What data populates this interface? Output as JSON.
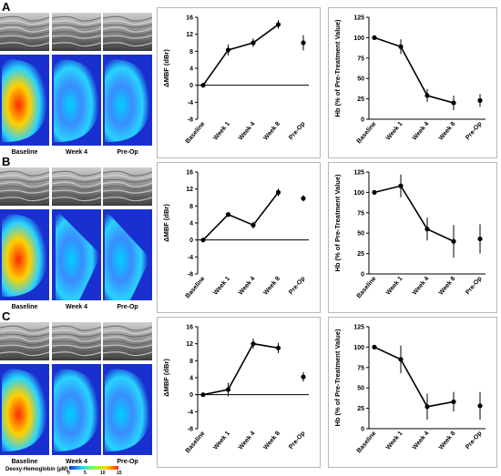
{
  "panels": [
    {
      "letter": "A",
      "image_captions": [
        "Baseline",
        "Week 4",
        "Pre-Op"
      ],
      "mbf": {
        "type": "line",
        "ylabel": "ΔMBF (dBr)",
        "ylim": [
          -8,
          16
        ],
        "yticks": [
          "-8",
          "-4",
          "0",
          "4",
          "8",
          "12",
          "16"
        ],
        "x_labels": [
          "Baseline",
          "Week 1",
          "Week 4",
          "Week 8",
          "Pre-Op"
        ],
        "points": [
          {
            "x": "Baseline",
            "y": 0,
            "err": 0
          },
          {
            "x": "Week 1",
            "y": 8.3,
            "err": 1.3
          },
          {
            "x": "Week 4",
            "y": 10,
            "err": 1.0
          },
          {
            "x": "Week 8",
            "y": 14.3,
            "err": 1.0
          },
          {
            "x": "Pre-Op",
            "y": 10,
            "err": 1.8
          }
        ]
      },
      "hb": {
        "type": "line",
        "ylabel": "Hb (% of Pre-Treatment Value)",
        "ylim": [
          0,
          125
        ],
        "yticks": [
          "0",
          "25",
          "50",
          "75",
          "100",
          "125"
        ],
        "x_labels": [
          "Baseline",
          "Week 1",
          "Week 4",
          "Week 8",
          "Pre-Op"
        ],
        "points": [
          {
            "x": "Baseline",
            "y": 100,
            "err": 0
          },
          {
            "x": "Week 1",
            "y": 89,
            "err": 9
          },
          {
            "x": "Week 4",
            "y": 29,
            "err": 8
          },
          {
            "x": "Week 8",
            "y": 20,
            "err": 9
          },
          {
            "x": "Pre-Op",
            "y": 23,
            "err": 8
          }
        ]
      }
    },
    {
      "letter": "B",
      "image_captions": [
        "Baseline",
        "Week 4",
        "Pre-Op"
      ],
      "mbf": {
        "type": "line",
        "ylabel": "ΔMBF (dBr)",
        "ylim": [
          -8,
          16
        ],
        "yticks": [
          "-8",
          "-4",
          "0",
          "4",
          "8",
          "12",
          "16"
        ],
        "x_labels": [
          "Baseline",
          "Week 1",
          "Week 4",
          "Week 8",
          "Pre-Op"
        ],
        "points": [
          {
            "x": "Baseline",
            "y": 0,
            "err": 0
          },
          {
            "x": "Week 1",
            "y": 6,
            "err": 0.6
          },
          {
            "x": "Week 4",
            "y": 3.5,
            "err": 0.8
          },
          {
            "x": "Week 8",
            "y": 11.2,
            "err": 0.9
          },
          {
            "x": "Pre-Op",
            "y": 9.8,
            "err": 0.7
          }
        ]
      },
      "hb": {
        "type": "line",
        "ylabel": "Hb (% of Pre-Treatment Value)",
        "ylim": [
          0,
          125
        ],
        "yticks": [
          "0",
          "25",
          "50",
          "75",
          "100",
          "125"
        ],
        "x_labels": [
          "Baseline",
          "Week 1",
          "Week 4",
          "Week 8",
          "Pre-Op"
        ],
        "points": [
          {
            "x": "Baseline",
            "y": 100,
            "err": 0
          },
          {
            "x": "Week 1",
            "y": 108,
            "err": 14
          },
          {
            "x": "Week 4",
            "y": 55,
            "err": 14
          },
          {
            "x": "Week 8",
            "y": 40,
            "err": 20
          },
          {
            "x": "Pre-Op",
            "y": 43,
            "err": 18
          }
        ]
      }
    },
    {
      "letter": "C",
      "image_captions": [
        "Baseline",
        "Week 4",
        "Pre-Op"
      ],
      "mbf": {
        "type": "line",
        "ylabel": "ΔMBF (dBr)",
        "ylim": [
          -8,
          16
        ],
        "yticks": [
          "-8",
          "-4",
          "0",
          "4",
          "8",
          "12",
          "16"
        ],
        "x_labels": [
          "Baseline",
          "Week 1",
          "Week 4",
          "Week 8",
          "Pre-Op"
        ],
        "points": [
          {
            "x": "Baseline",
            "y": 0,
            "err": 0
          },
          {
            "x": "Week 1",
            "y": 1.2,
            "err": 1.6
          },
          {
            "x": "Week 4",
            "y": 12,
            "err": 1.2
          },
          {
            "x": "Week 8",
            "y": 11,
            "err": 1.2
          },
          {
            "x": "Pre-Op",
            "y": 4.2,
            "err": 1.1
          }
        ]
      },
      "hb": {
        "type": "line",
        "ylabel": "Hb (% of Pre-Treatment Value)",
        "ylim": [
          0,
          125
        ],
        "yticks": [
          "0",
          "25",
          "50",
          "75",
          "100",
          "125"
        ],
        "x_labels": [
          "Baseline",
          "Week 1",
          "Week 4",
          "Week 8",
          "Pre-Op"
        ],
        "points": [
          {
            "x": "Baseline",
            "y": 100,
            "err": 0
          },
          {
            "x": "Week 1",
            "y": 85,
            "err": 17
          },
          {
            "x": "Week 4",
            "y": 27,
            "err": 16
          },
          {
            "x": "Week 8",
            "y": 33,
            "err": 12
          },
          {
            "x": "Pre-Op",
            "y": 28,
            "err": 17
          }
        ]
      }
    }
  ],
  "colorbar": {
    "label": "Deoxy-Hemoglobin (µM)",
    "ticks": [
      "0",
      "5",
      "10",
      "15"
    ]
  },
  "colors": {
    "line": "#000000",
    "map_background": "#1a2fd0",
    "box_border": "#b8b8b8"
  }
}
